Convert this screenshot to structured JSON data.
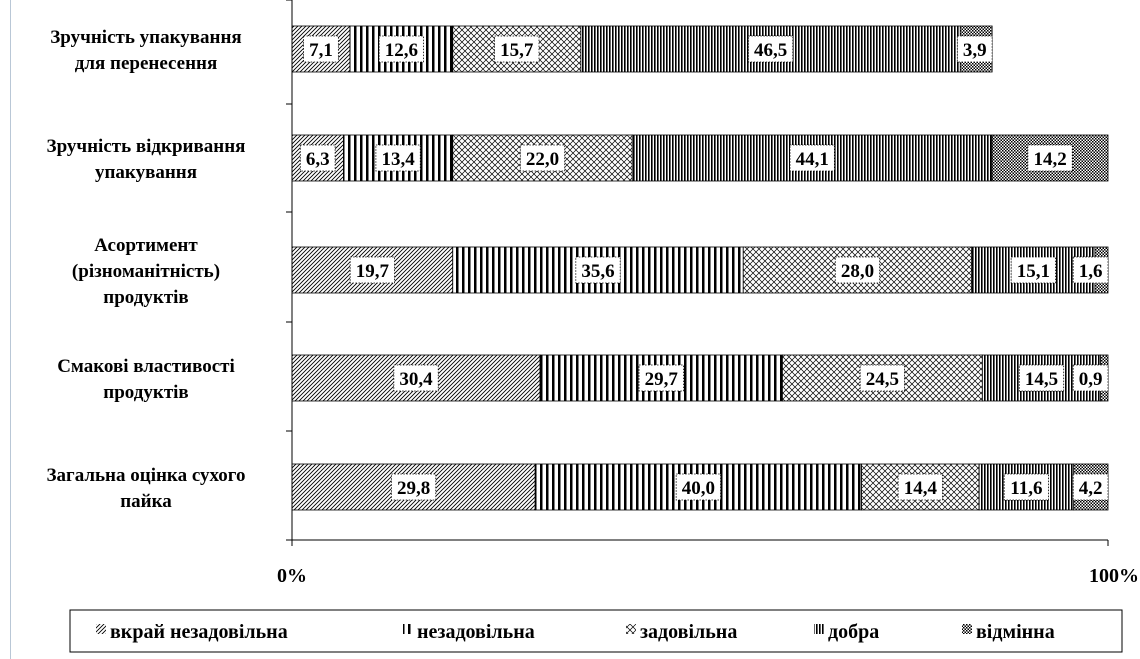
{
  "chart_data": {
    "type": "bar",
    "orientation": "horizontal",
    "stacked": "percent",
    "categories": [
      [
        "Зручність упакування",
        "для перенесення"
      ],
      [
        "Зручність відкривання",
        "упакування"
      ],
      [
        "Асортимент",
        "(різноманітність)",
        "продуктів"
      ],
      [
        "Смакові властивості",
        "продуктів"
      ],
      [
        "Загальна оцінка сухого",
        "пайка"
      ]
    ],
    "series": [
      {
        "name": "вкрай незадовільна",
        "pattern": "diag",
        "values": [
          7.1,
          6.3,
          19.7,
          30.4,
          29.8
        ]
      },
      {
        "name": "незадовільна",
        "pattern": "vsparse",
        "values": [
          12.6,
          13.4,
          35.6,
          29.7,
          40.0
        ]
      },
      {
        "name": "задовільна",
        "pattern": "cross",
        "values": [
          15.7,
          22.0,
          28.0,
          24.5,
          14.4
        ]
      },
      {
        "name": "добра",
        "pattern": "vdense",
        "values": [
          46.5,
          44.1,
          15.1,
          14.5,
          11.6
        ]
      },
      {
        "name": "відмінна",
        "pattern": "grid",
        "values": [
          3.9,
          14.2,
          1.6,
          0.9,
          4.2
        ]
      }
    ],
    "value_labels": [
      [
        "7,1",
        "12,6",
        "15,7",
        "46,5",
        "3,9"
      ],
      [
        "6,3",
        "13,4",
        "22,0",
        "44,1",
        "14,2"
      ],
      [
        "19,7",
        "35,6",
        "28,0",
        "15,1",
        "1,6"
      ],
      [
        "30,4",
        "29,7",
        "24,5",
        "14,5",
        "0,9"
      ],
      [
        "29,8",
        "40,0",
        "14,4",
        "11,6",
        "4,2"
      ]
    ],
    "xlim": [
      0,
      100
    ],
    "x_ticks": [
      "0%",
      "100%"
    ],
    "legend_position": "bottom",
    "grid": false
  }
}
